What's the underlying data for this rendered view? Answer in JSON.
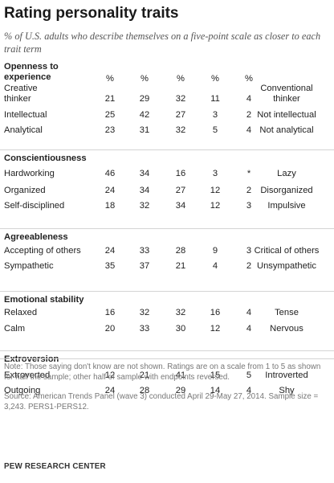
{
  "title": "Rating personality traits",
  "subtitle": "% of U.S. adults who describe themselves on a five-point scale as closer to each trait term",
  "chart_data": {
    "type": "table",
    "column_headers": [
      "%",
      "%",
      "%",
      "%",
      "%"
    ],
    "groups": [
      {
        "name": [
          "Openness to",
          "experience"
        ],
        "rows": [
          {
            "left": [
              "Creative",
              "thinker"
            ],
            "values": [
              "21",
              "29",
              "32",
              "11",
              "4"
            ],
            "right": [
              "Conventional",
              "thinker"
            ]
          },
          {
            "left": [
              "Intellectual"
            ],
            "values": [
              "25",
              "42",
              "27",
              "3",
              "2"
            ],
            "right": [
              "Not intellectual"
            ]
          },
          {
            "left": [
              "Analytical"
            ],
            "values": [
              "23",
              "31",
              "32",
              "5",
              "4"
            ],
            "right": [
              "Not analytical"
            ]
          }
        ]
      },
      {
        "name": [
          "Conscientiousness"
        ],
        "rows": [
          {
            "left": [
              "Hardworking"
            ],
            "values": [
              "46",
              "34",
              "16",
              "3",
              "*"
            ],
            "right": [
              "Lazy"
            ]
          },
          {
            "left": [
              "Organized"
            ],
            "values": [
              "24",
              "34",
              "27",
              "12",
              "2"
            ],
            "right": [
              "Disorganized"
            ]
          },
          {
            "left": [
              "Self-disciplined"
            ],
            "values": [
              "18",
              "32",
              "34",
              "12",
              "3"
            ],
            "right": [
              "Impulsive"
            ]
          }
        ]
      },
      {
        "name": [
          "Agreeableness"
        ],
        "rows": [
          {
            "left": [
              "Accepting of others"
            ],
            "values": [
              "24",
              "33",
              "28",
              "9",
              "3"
            ],
            "right": [
              "Critical of others"
            ]
          },
          {
            "left": [
              "Sympathetic"
            ],
            "values": [
              "35",
              "37",
              "21",
              "4",
              "2"
            ],
            "right": [
              "Unsympathetic"
            ]
          }
        ]
      },
      {
        "name": [
          "Emotional stability"
        ],
        "rows": [
          {
            "left": [
              "Relaxed"
            ],
            "values": [
              "16",
              "32",
              "32",
              "16",
              "4"
            ],
            "right": [
              "Tense"
            ]
          },
          {
            "left": [
              "Calm"
            ],
            "values": [
              "20",
              "33",
              "30",
              "12",
              "4"
            ],
            "right": [
              "Nervous"
            ]
          }
        ]
      },
      {
        "name": [
          "Extroversion"
        ],
        "rows": [
          {
            "left": [
              "Extroverted"
            ],
            "values": [
              "12",
              "21",
              "41",
              "15",
              "5"
            ],
            "right": [
              "Introverted"
            ]
          },
          {
            "left": [
              "Outgoing"
            ],
            "values": [
              "24",
              "28",
              "29",
              "14",
              "4"
            ],
            "right": [
              "Shy"
            ]
          }
        ]
      }
    ]
  },
  "note": "Note: Those saying don't know are not shown. Ratings are on a scale from 1 to 5 as shown for half the sample; other half of sample with endpoints reversed.",
  "source": "Source: American Trends Panel (wave 3) conducted April 29-May 27, 2014. Sample size = 3,243. PERS1-PERS12.",
  "footer": "PEW RESEARCH CENTER"
}
